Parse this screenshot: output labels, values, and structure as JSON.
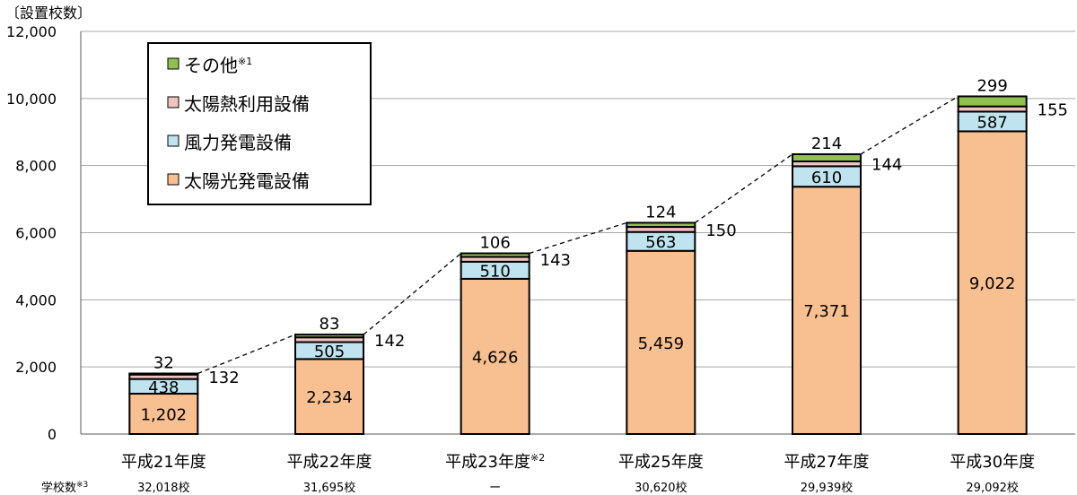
{
  "chart_data": {
    "type": "bar",
    "stacked": true,
    "ylabel": "〔設置校数〕",
    "ylim": [
      0,
      12000
    ],
    "yticks": [
      0,
      2000,
      4000,
      6000,
      8000,
      10000,
      12000
    ],
    "ytick_labels": [
      "0",
      "2,000",
      "4,000",
      "6,000",
      "8,000",
      "10,000",
      "12,000"
    ],
    "grid": true,
    "legend_position": "top-left",
    "categories": [
      "平成21年度",
      "平成22年度",
      "平成23年度",
      "平成25年度",
      "平成27年度",
      "平成30年度"
    ],
    "category_note_index": 2,
    "category_note": "※2",
    "series": [
      {
        "name": "太陽光発電設備",
        "color": "#f8c090",
        "values": [
          1202,
          2234,
          4626,
          5459,
          7371,
          9022
        ],
        "labels": [
          "1,202",
          "2,234",
          "4,626",
          "5,459",
          "7,371",
          "9,022"
        ]
      },
      {
        "name": "風力発電設備",
        "color": "#bfe3ef",
        "values": [
          438,
          505,
          510,
          563,
          610,
          587
        ],
        "labels": [
          "438",
          "505",
          "510",
          "563",
          "610",
          "587"
        ]
      },
      {
        "name": "太陽熱利用設備",
        "color": "#f2c4c0",
        "values": [
          132,
          142,
          143,
          150,
          144,
          155
        ],
        "labels": [
          "132",
          "142",
          "143",
          "150",
          "144",
          "155"
        ]
      },
      {
        "name": "その他",
        "name_note": "※1",
        "color": "#92c050",
        "values": [
          32,
          83,
          106,
          124,
          214,
          299
        ],
        "labels": [
          "32",
          "83",
          "106",
          "124",
          "214",
          "299"
        ]
      }
    ],
    "school_count_label": "学校数",
    "school_count_note": "※3",
    "school_counts": [
      "32,018校",
      "31,695校",
      "ー",
      "30,620校",
      "29,939校",
      "29,092校"
    ]
  }
}
